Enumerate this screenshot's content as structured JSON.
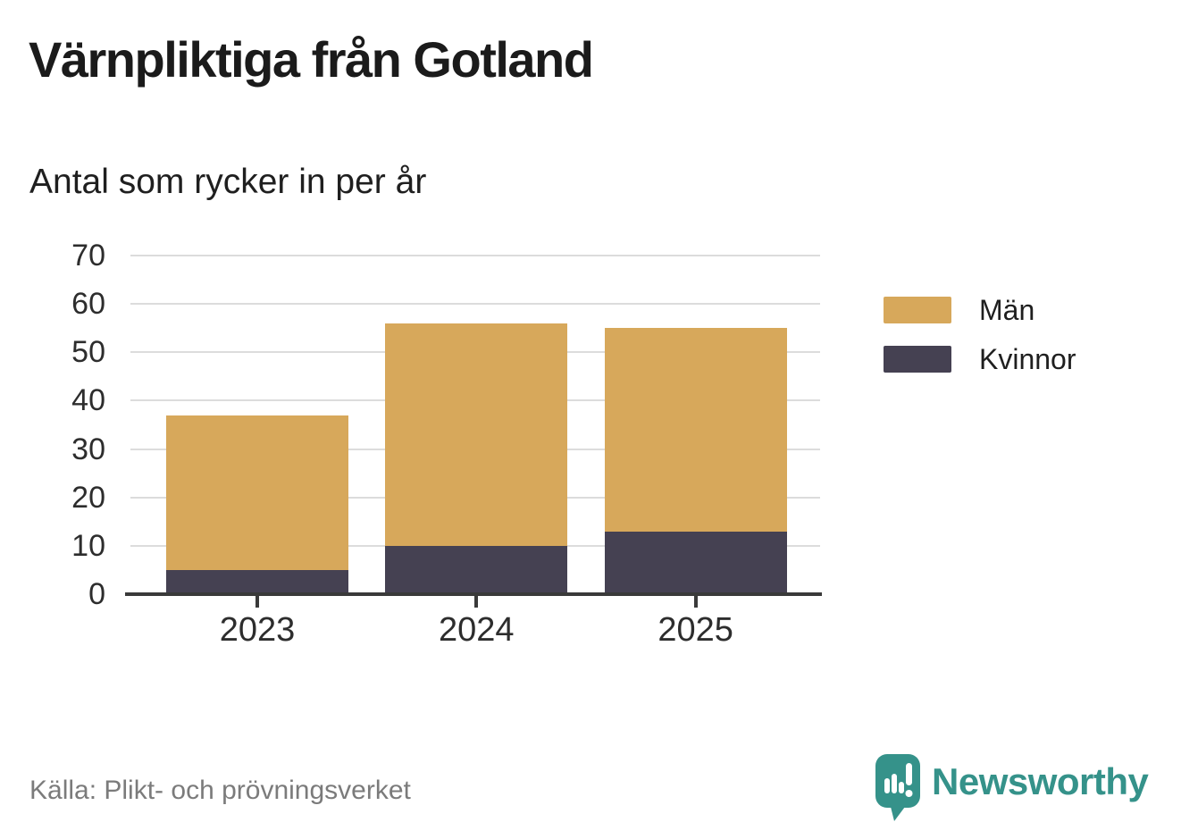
{
  "header": {
    "title": "Värnpliktiga från Gotland",
    "subtitle": "Antal som rycker in per år"
  },
  "chart_data": {
    "type": "bar",
    "stacked": true,
    "title": "Värnpliktiga från Gotland",
    "subtitle": "Antal som rycker in per år",
    "categories": [
      "2023",
      "2024",
      "2025"
    ],
    "series": [
      {
        "name": "Män",
        "color": "#D7A85B",
        "values": [
          32,
          46,
          42
        ]
      },
      {
        "name": "Kvinnor",
        "color": "#454152",
        "values": [
          5,
          10,
          13
        ]
      }
    ],
    "stack_bottom_to_top": [
      "Kvinnor",
      "Män"
    ],
    "totals": [
      37,
      56,
      55
    ],
    "xlabel": "",
    "ylabel": "",
    "ylim": [
      0,
      70
    ],
    "yticks": [
      0,
      10,
      20,
      30,
      40,
      50,
      60,
      70
    ],
    "grid": true,
    "legend_position": "right"
  },
  "footer": {
    "source": "Källa: Plikt- och prövningsverket",
    "brand": "Newsworthy"
  },
  "colors": {
    "bar_men": "#D7A85B",
    "bar_women": "#454152",
    "axis": "#3A3A3A",
    "gridline": "#DCDCDC",
    "tick_label": "#2D2D2D",
    "source_text": "#7B7B7B",
    "brand_teal": "#35928A",
    "background": "#FFFFFF"
  }
}
